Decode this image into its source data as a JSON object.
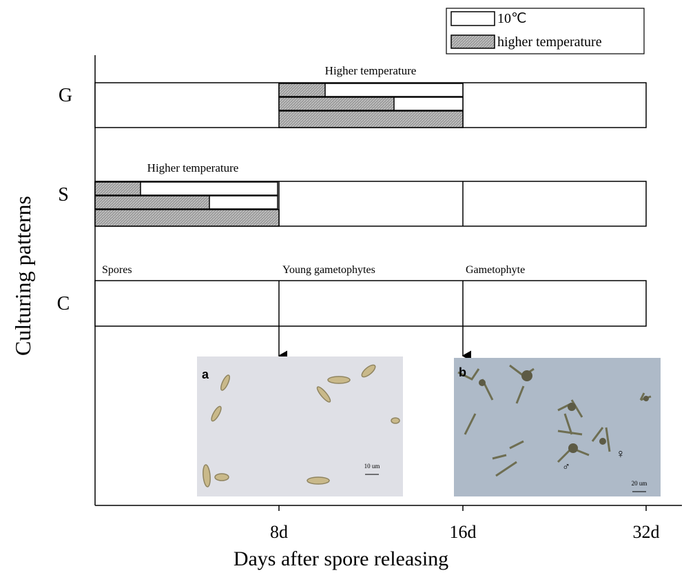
{
  "legend": {
    "items": [
      "10℃",
      "higher temperature"
    ]
  },
  "rows": [
    {
      "label": "G",
      "note": "Higher temperature"
    },
    {
      "label": "S",
      "note": "Higher temperature"
    },
    {
      "label": "C"
    }
  ],
  "stage_labels": [
    "Spores",
    "Young gametophytes",
    "Gametophyte"
  ],
  "x_axis": {
    "title": "Days after spore releasing",
    "ticks": [
      "8d",
      "16d",
      "32d"
    ]
  },
  "y_axis": {
    "title": "Culturing patterns"
  },
  "panels": [
    {
      "label": "a",
      "scale": "10 um"
    },
    {
      "label": "b",
      "scale": "20 um",
      "markers": [
        "♂",
        "♀"
      ]
    }
  ]
}
